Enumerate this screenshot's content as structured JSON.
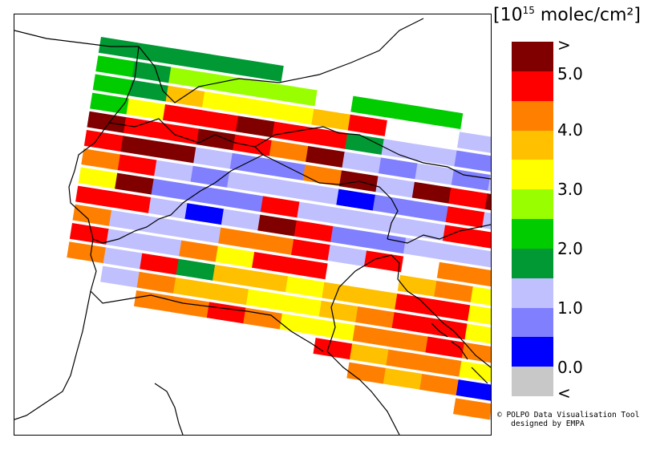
{
  "legend": {
    "title_prefix": "[10",
    "title_exp": "15",
    "title_suffix": " molec/cm²]",
    "bins": [
      {
        "color": "#800000"
      },
      {
        "color": "#ff0000"
      },
      {
        "color": "#ff8000"
      },
      {
        "color": "#ffc000"
      },
      {
        "color": "#ffff00"
      },
      {
        "color": "#99ff00"
      },
      {
        "color": "#00cc00"
      },
      {
        "color": "#009933"
      },
      {
        "color": "#c0c0ff"
      },
      {
        "color": "#8080ff"
      },
      {
        "color": "#0000ff"
      },
      {
        "color": "#c8c8c8"
      }
    ],
    "labels": [
      ">",
      "5.0",
      "4.0",
      "3.0",
      "2.0",
      "1.0",
      "0.0",
      "<"
    ]
  },
  "credit": {
    "line1": "© POLPO Data Visualisation Tool",
    "line2": "   designed by EMPA"
  },
  "swaths": [
    {
      "tiles": [
        7,
        7,
        7,
        7,
        7
      ]
    },
    {
      "tiles": [
        6,
        7,
        5,
        5,
        5,
        5,
        -1,
        6,
        6,
        6
      ]
    },
    {
      "tiles": [
        6,
        7,
        3,
        4,
        4,
        4,
        3,
        1,
        -1,
        -1,
        8,
        1,
        3
      ]
    },
    {
      "tiles": [
        6,
        4,
        1,
        1,
        0,
        1,
        1,
        7,
        8,
        8,
        9,
        8,
        3
      ]
    },
    {
      "tiles": [
        0,
        1,
        1,
        0,
        1,
        2,
        0,
        8,
        9,
        8,
        9,
        8,
        -1,
        4
      ]
    },
    {
      "tiles": [
        1,
        0,
        0,
        8,
        9,
        9,
        2,
        0,
        8,
        0,
        1,
        0,
        1,
        0
      ]
    },
    {
      "tiles": [
        2,
        1,
        8,
        9,
        8,
        8,
        8,
        10,
        9,
        9,
        1,
        8,
        0,
        1
      ]
    },
    {
      "tiles": [
        4,
        0,
        9,
        9,
        9,
        1,
        8,
        8,
        8,
        8,
        1,
        1,
        9,
        8
      ]
    },
    {
      "tiles": [
        1,
        1,
        8,
        10,
        8,
        0,
        1,
        9,
        9,
        8,
        8,
        8,
        4,
        8
      ]
    },
    {
      "tiles": [
        2,
        8,
        8,
        8,
        2,
        2,
        1,
        8,
        1,
        -1,
        2,
        2,
        1,
        8
      ]
    },
    {
      "tiles": [
        1,
        8,
        8,
        2,
        4,
        1,
        1,
        -1,
        -1,
        3,
        2,
        4,
        2,
        9
      ]
    },
    {
      "tiles": [
        2,
        8,
        1,
        7,
        3,
        3,
        4,
        3,
        3,
        1,
        1,
        4,
        4,
        8
      ]
    },
    {
      "tiles": [
        -1,
        8,
        2,
        3,
        3,
        4,
        4,
        3,
        2,
        1,
        1,
        4,
        4,
        9
      ]
    },
    {
      "tiles": [
        -1,
        -1,
        2,
        2,
        1,
        2,
        4,
        4,
        2,
        2,
        1,
        2,
        4,
        8
      ]
    },
    {
      "tiles": [
        -1,
        -1,
        -1,
        -1,
        -1,
        -1,
        -1,
        1,
        3,
        2,
        2,
        4,
        9,
        11
      ]
    },
    {
      "tiles": [
        -1,
        -1,
        -1,
        -1,
        -1,
        -1,
        -1,
        -1,
        2,
        3,
        2,
        10,
        11,
        11
      ]
    },
    {
      "tiles": [
        -1,
        -1,
        -1,
        -1,
        -1,
        -1,
        -1,
        -1,
        -1,
        -1,
        -1,
        2,
        11,
        11
      ]
    }
  ]
}
